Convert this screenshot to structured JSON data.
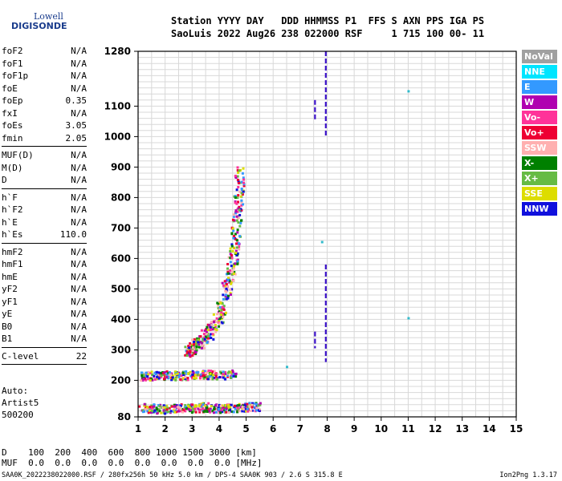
{
  "logo": {
    "line1": "Lowell",
    "line2": "DIGISONDE"
  },
  "header": {
    "line1": "Station YYYY DAY   DDD HHMMSS P1  FFS S AXN PPS IGA PS",
    "line2": "SaoLuis 2022 Aug26 238 022000 RSF     1 715 100 00- 11"
  },
  "params": {
    "group1": [
      {
        "name": "foF2",
        "value": "N/A"
      },
      {
        "name": "foF1",
        "value": "N/A"
      },
      {
        "name": "foF1p",
        "value": "N/A"
      },
      {
        "name": "foE",
        "value": "N/A"
      },
      {
        "name": "foEp",
        "value": "0.35"
      },
      {
        "name": "fxI",
        "value": "N/A"
      },
      {
        "name": "foEs",
        "value": "3.05"
      },
      {
        "name": "fmin",
        "value": "2.05"
      }
    ],
    "group2": [
      {
        "name": "MUF(D)",
        "value": "N/A"
      },
      {
        "name": "M(D)",
        "value": "N/A"
      },
      {
        "name": "D",
        "value": "N/A"
      }
    ],
    "group3": [
      {
        "name": "h`F",
        "value": "N/A"
      },
      {
        "name": "h`F2",
        "value": "N/A"
      },
      {
        "name": "h`E",
        "value": "N/A"
      },
      {
        "name": "h`Es",
        "value": "110.0"
      }
    ],
    "group4": [
      {
        "name": "hmF2",
        "value": "N/A"
      },
      {
        "name": "hmF1",
        "value": "N/A"
      },
      {
        "name": "hmE",
        "value": "N/A"
      },
      {
        "name": "yF2",
        "value": "N/A"
      },
      {
        "name": "yF1",
        "value": "N/A"
      },
      {
        "name": "yE",
        "value": "N/A"
      },
      {
        "name": "B0",
        "value": "N/A"
      },
      {
        "name": "B1",
        "value": "N/A"
      }
    ],
    "group5": [
      {
        "name": "C-level",
        "value": "22"
      }
    ]
  },
  "auto": {
    "line1": "Auto:",
    "line2": "Artist5",
    "line3": "500200"
  },
  "legend": [
    {
      "label": "NoVal",
      "color": "#a0a0a0"
    },
    {
      "label": "NNE",
      "color": "#00e5ff"
    },
    {
      "label": "E",
      "color": "#3399ff"
    },
    {
      "label": "W",
      "color": "#b000b0"
    },
    {
      "label": "Vo-",
      "color": "#ff3399"
    },
    {
      "label": "Vo+",
      "color": "#ee0033"
    },
    {
      "label": "SSW",
      "color": "#ffb0b0"
    },
    {
      "label": "X-",
      "color": "#008000"
    },
    {
      "label": "X+",
      "color": "#66bb44"
    },
    {
      "label": "SSE",
      "color": "#dddd00"
    },
    {
      "label": "NNW",
      "color": "#1010dd"
    }
  ],
  "footer": {
    "line1": "D    100  200  400  600  800 1000 1500 3000 [km]",
    "line2": "MUF  0.0  0.0  0.0  0.0  0.0  0.0  0.0  0.0 [MHz]"
  },
  "bottom": {
    "left": "SAA0K_2022238022000.RSF / 280fx256h 50 kHz 5.0 km / DPS-4 SAA0K 903 / 2.6 S 315.8 E",
    "right": "Ion2Png 1.3.17"
  },
  "chart_data": {
    "type": "scatter",
    "xlabel": "",
    "ylabel": "",
    "xlim": [
      1,
      15
    ],
    "ylim": [
      80,
      1280
    ],
    "x_ticks": [
      1,
      2,
      3,
      4,
      5,
      6,
      7,
      8,
      9,
      10,
      11,
      12,
      13,
      14,
      15
    ],
    "y_ticks": [
      80,
      200,
      300,
      400,
      500,
      600,
      700,
      800,
      900,
      1000,
      1100,
      1280
    ],
    "grid": true,
    "traces": [
      {
        "name": "Es layer",
        "points": [
          [
            1.1,
            115
          ],
          [
            1.5,
            110
          ],
          [
            2.0,
            108
          ],
          [
            2.5,
            112
          ],
          [
            3.0,
            110
          ],
          [
            3.5,
            115
          ],
          [
            4.0,
            110
          ],
          [
            4.5,
            112
          ],
          [
            5.0,
            115
          ],
          [
            5.5,
            118
          ]
        ]
      },
      {
        "name": "Es second hop",
        "points": [
          [
            1.1,
            215
          ],
          [
            1.5,
            218
          ],
          [
            2.0,
            220
          ],
          [
            2.5,
            218
          ],
          [
            3.0,
            220
          ],
          [
            3.5,
            222
          ],
          [
            4.0,
            220
          ],
          [
            4.5,
            222
          ]
        ]
      },
      {
        "name": "F trace",
        "points": [
          [
            2.8,
            300
          ],
          [
            3.0,
            310
          ],
          [
            3.3,
            330
          ],
          [
            3.6,
            360
          ],
          [
            3.9,
            400
          ],
          [
            4.1,
            450
          ],
          [
            4.3,
            520
          ],
          [
            4.5,
            600
          ],
          [
            4.6,
            700
          ],
          [
            4.7,
            800
          ],
          [
            4.75,
            900
          ]
        ]
      }
    ],
    "interference_lines": [
      {
        "x": 7.95,
        "y_from": 1000,
        "y_to": 1280
      },
      {
        "x": 7.95,
        "y_from": 260,
        "y_to": 580
      },
      {
        "x": 7.55,
        "y_from": 1050,
        "y_to": 1120
      },
      {
        "x": 7.55,
        "y_from": 305,
        "y_to": 360
      }
    ],
    "isolated_points": [
      [
        11.0,
        1150
      ],
      [
        11.0,
        405
      ],
      [
        7.8,
        655
      ],
      [
        6.5,
        245
      ]
    ]
  }
}
